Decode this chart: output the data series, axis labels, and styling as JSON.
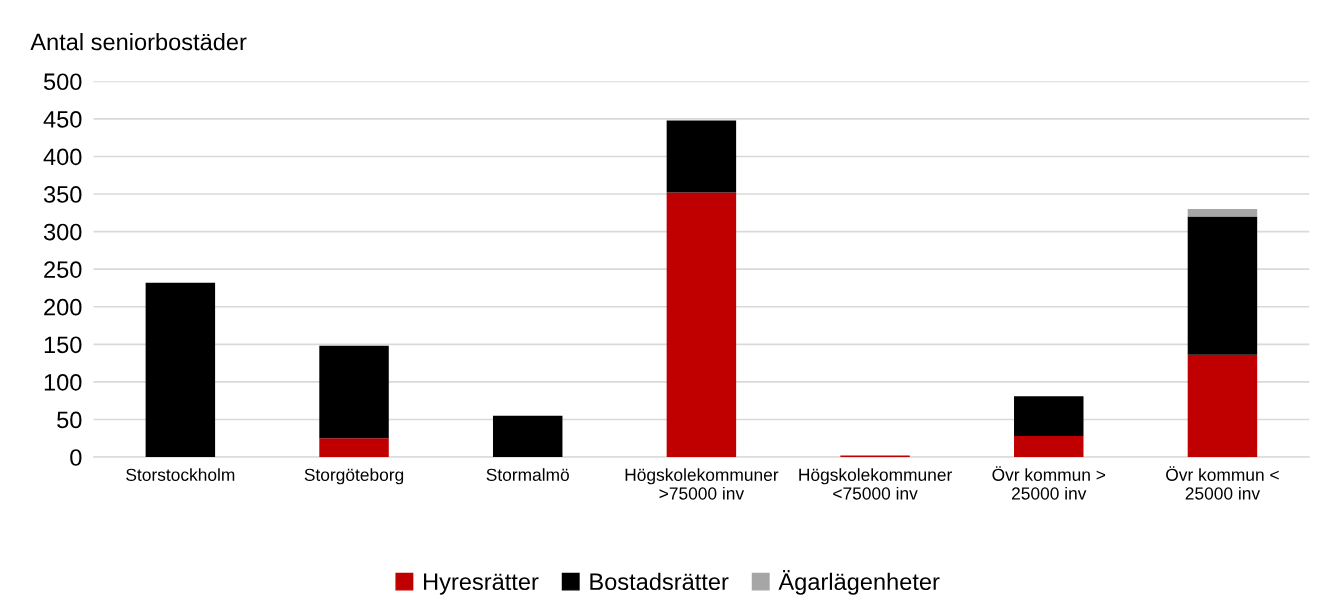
{
  "chart_data": {
    "type": "bar",
    "stacked": true,
    "ylabel": "Antal seniorbostäder",
    "categories": [
      "Storstockholm",
      "Storgöteborg",
      "Stormalmö",
      "Högskolekommuner\n>75000 inv",
      "Högskolekommuner\n<75000 inv",
      "Övr kommun >\n25000 inv",
      "Övr kommun <\n25000 inv"
    ],
    "series": [
      {
        "name": "Hyresrätter",
        "color": "#c00000",
        "values": [
          0,
          25,
          0,
          352,
          2,
          28,
          136
        ]
      },
      {
        "name": "Bostadsrätter",
        "color": "#000000",
        "values": [
          232,
          123,
          55,
          96,
          0,
          53,
          184
        ]
      },
      {
        "name": "Ägarlägenheter",
        "color": "#a6a6a6",
        "values": [
          0,
          0,
          0,
          0,
          0,
          0,
          10
        ]
      }
    ],
    "ylim": [
      0,
      500
    ],
    "yticks": [
      0,
      50,
      100,
      150,
      200,
      250,
      300,
      350,
      400,
      450,
      500
    ],
    "grid": "y",
    "legend": "bottom"
  }
}
